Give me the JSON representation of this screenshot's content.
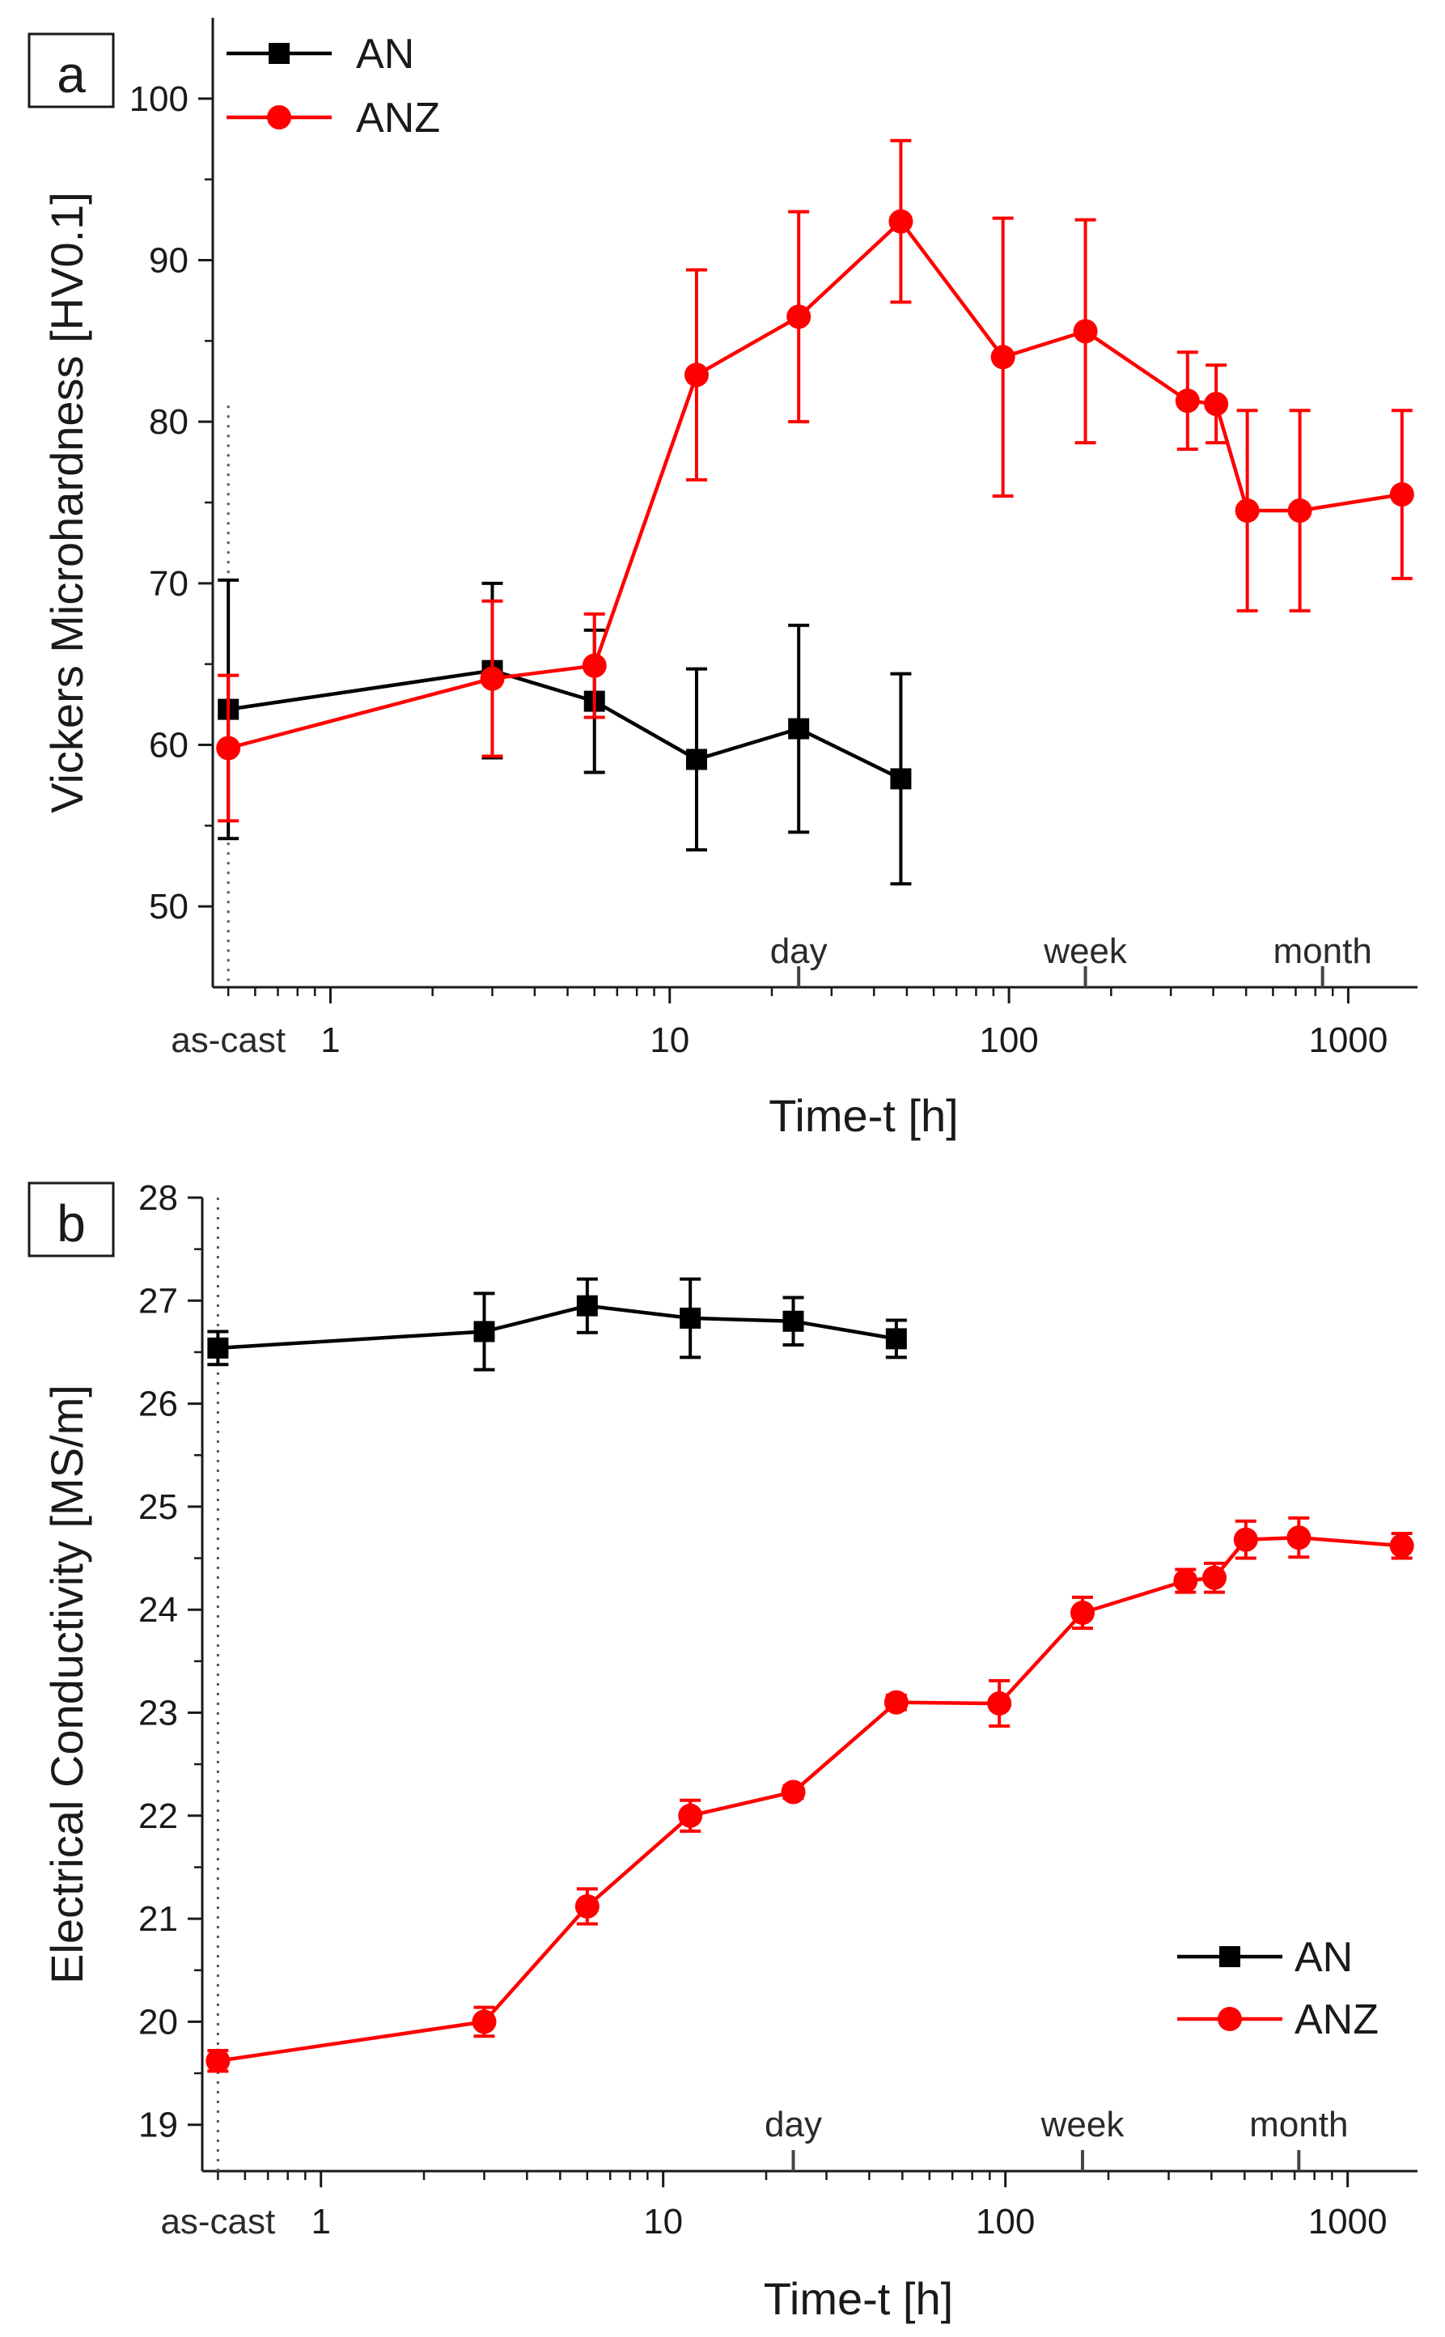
{
  "colors": {
    "AN": "#000000",
    "ANZ": "#ff0000"
  },
  "chart_data": [
    {
      "type": "line",
      "panel": "a",
      "xlabel": "Time-t [h]",
      "ylabel": "Vickers Microhardness [HV0.1]",
      "xscale": "log",
      "xlim": [
        0.45,
        1600
      ],
      "ylim": [
        45,
        105
      ],
      "yticks": [
        50,
        60,
        70,
        80,
        90,
        100
      ],
      "xticks": [
        {
          "v": 1,
          "label": "1"
        },
        {
          "v": 10,
          "label": "10"
        },
        {
          "v": 100,
          "label": "100"
        },
        {
          "v": 1000,
          "label": "1000"
        }
      ],
      "as_cast": {
        "v": 0.5,
        "label": "as-cast"
      },
      "annotations": [
        {
          "v": 24,
          "label": "day"
        },
        {
          "v": 168,
          "label": "week"
        },
        {
          "v": 840,
          "label": "month"
        }
      ],
      "legend_position": "top-left",
      "series": [
        {
          "name": "AN",
          "marker": "square",
          "x": [
            0.5,
            3,
            6,
            12,
            24,
            48
          ],
          "y": [
            62.2,
            64.6,
            62.7,
            59.1,
            61.0,
            57.9
          ],
          "err": [
            8.0,
            5.4,
            4.4,
            5.6,
            6.4,
            6.5
          ]
        },
        {
          "name": "ANZ",
          "marker": "circle",
          "x": [
            0.5,
            3,
            6,
            12,
            24,
            48,
            96,
            168,
            336,
            408,
            504,
            720,
            1440
          ],
          "y": [
            59.8,
            64.1,
            64.9,
            82.9,
            86.5,
            92.4,
            84.0,
            85.6,
            81.3,
            81.1,
            74.5,
            74.5,
            75.5
          ],
          "err": [
            4.5,
            4.8,
            3.2,
            6.5,
            6.5,
            5.0,
            8.6,
            6.9,
            3.0,
            2.4,
            6.2,
            6.2,
            5.2
          ]
        }
      ]
    },
    {
      "type": "line",
      "panel": "b",
      "xlabel": "Time-t [h]",
      "ylabel": "Electrical Conductivity [MS/m]",
      "xscale": "log",
      "xlim": [
        0.45,
        1600
      ],
      "ylim": [
        18.55,
        28
      ],
      "yticks": [
        19,
        20,
        21,
        22,
        23,
        24,
        25,
        26,
        27,
        28
      ],
      "xticks": [
        {
          "v": 1,
          "label": "1"
        },
        {
          "v": 10,
          "label": "10"
        },
        {
          "v": 100,
          "label": "100"
        },
        {
          "v": 1000,
          "label": "1000"
        }
      ],
      "as_cast": {
        "v": 0.5,
        "label": "as-cast"
      },
      "annotations": [
        {
          "v": 24,
          "label": "day"
        },
        {
          "v": 168,
          "label": "week"
        },
        {
          "v": 720,
          "label": "month"
        }
      ],
      "legend_position": "bottom-right",
      "series": [
        {
          "name": "AN",
          "marker": "square",
          "x": [
            0.5,
            3,
            6,
            12,
            24,
            48
          ],
          "y": [
            26.54,
            26.7,
            26.95,
            26.83,
            26.8,
            26.63
          ],
          "err": [
            0.16,
            0.37,
            0.26,
            0.38,
            0.23,
            0.18
          ]
        },
        {
          "name": "ANZ",
          "marker": "circle",
          "x": [
            0.5,
            3,
            6,
            12,
            24,
            48,
            96,
            168,
            336,
            408,
            504,
            720,
            1440
          ],
          "y": [
            19.62,
            20.0,
            21.12,
            22.0,
            22.23,
            23.1,
            23.09,
            23.97,
            24.28,
            24.31,
            24.68,
            24.7,
            24.62
          ],
          "err": [
            0.1,
            0.14,
            0.17,
            0.15,
            0.06,
            0.07,
            0.22,
            0.15,
            0.11,
            0.14,
            0.18,
            0.19,
            0.12
          ]
        }
      ]
    }
  ]
}
